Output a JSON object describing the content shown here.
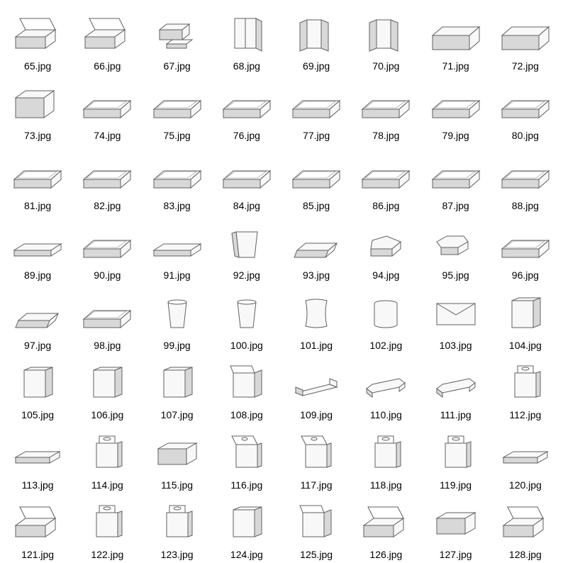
{
  "grid": {
    "columns": 8,
    "rows": 8,
    "background_color": "#ffffff",
    "label_color": "#000000",
    "label_fontsize": 14,
    "stroke_color": "#606060",
    "stroke_light": "#b0b0b0",
    "fill_light": "#f8f8f8",
    "fill_shadow": "#d8d8d8"
  },
  "items": [
    {
      "label": "65.jpg",
      "shape": "box_open_lid"
    },
    {
      "label": "66.jpg",
      "shape": "box_open_lid"
    },
    {
      "label": "67.jpg",
      "shape": "box_with_tray"
    },
    {
      "label": "68.jpg",
      "shape": "tall_folder"
    },
    {
      "label": "69.jpg",
      "shape": "tall_folder_open"
    },
    {
      "label": "70.jpg",
      "shape": "tall_folder_open"
    },
    {
      "label": "71.jpg",
      "shape": "tray_deep"
    },
    {
      "label": "72.jpg",
      "shape": "tray_deep"
    },
    {
      "label": "73.jpg",
      "shape": "box_half"
    },
    {
      "label": "74.jpg",
      "shape": "tray"
    },
    {
      "label": "75.jpg",
      "shape": "tray"
    },
    {
      "label": "76.jpg",
      "shape": "tray"
    },
    {
      "label": "77.jpg",
      "shape": "tray"
    },
    {
      "label": "78.jpg",
      "shape": "tray"
    },
    {
      "label": "79.jpg",
      "shape": "tray"
    },
    {
      "label": "80.jpg",
      "shape": "tray"
    },
    {
      "label": "81.jpg",
      "shape": "tray"
    },
    {
      "label": "82.jpg",
      "shape": "tray"
    },
    {
      "label": "83.jpg",
      "shape": "tray"
    },
    {
      "label": "84.jpg",
      "shape": "tray"
    },
    {
      "label": "85.jpg",
      "shape": "tray"
    },
    {
      "label": "86.jpg",
      "shape": "tray"
    },
    {
      "label": "87.jpg",
      "shape": "tray"
    },
    {
      "label": "88.jpg",
      "shape": "tray"
    },
    {
      "label": "89.jpg",
      "shape": "tray_shallow"
    },
    {
      "label": "90.jpg",
      "shape": "tray"
    },
    {
      "label": "91.jpg",
      "shape": "tray_shallow"
    },
    {
      "label": "92.jpg",
      "shape": "bag"
    },
    {
      "label": "93.jpg",
      "shape": "tray_angled"
    },
    {
      "label": "94.jpg",
      "shape": "pentagon_tray"
    },
    {
      "label": "95.jpg",
      "shape": "hex_tray"
    },
    {
      "label": "96.jpg",
      "shape": "tray"
    },
    {
      "label": "97.jpg",
      "shape": "tray_angled"
    },
    {
      "label": "98.jpg",
      "shape": "tray"
    },
    {
      "label": "99.jpg",
      "shape": "cup"
    },
    {
      "label": "100.jpg",
      "shape": "cup"
    },
    {
      "label": "101.jpg",
      "shape": "pillow"
    },
    {
      "label": "102.jpg",
      "shape": "cylinder"
    },
    {
      "label": "103.jpg",
      "shape": "envelope"
    },
    {
      "label": "104.jpg",
      "shape": "tall_box"
    },
    {
      "label": "105.jpg",
      "shape": "tall_box"
    },
    {
      "label": "106.jpg",
      "shape": "tall_box"
    },
    {
      "label": "107.jpg",
      "shape": "tall_box"
    },
    {
      "label": "108.jpg",
      "shape": "tall_box_open"
    },
    {
      "label": "109.jpg",
      "shape": "prism"
    },
    {
      "label": "110.jpg",
      "shape": "hex_prism"
    },
    {
      "label": "111.jpg",
      "shape": "hex_prism"
    },
    {
      "label": "112.jpg",
      "shape": "hang_box"
    },
    {
      "label": "113.jpg",
      "shape": "flat_box"
    },
    {
      "label": "114.jpg",
      "shape": "hang_box"
    },
    {
      "label": "115.jpg",
      "shape": "box_closed"
    },
    {
      "label": "116.jpg",
      "shape": "hang_box_open"
    },
    {
      "label": "117.jpg",
      "shape": "hang_box_open"
    },
    {
      "label": "118.jpg",
      "shape": "hang_box"
    },
    {
      "label": "119.jpg",
      "shape": "hang_box"
    },
    {
      "label": "120.jpg",
      "shape": "flat_box"
    },
    {
      "label": "121.jpg",
      "shape": "box_open_lid"
    },
    {
      "label": "122.jpg",
      "shape": "hang_box"
    },
    {
      "label": "123.jpg",
      "shape": "hang_box"
    },
    {
      "label": "124.jpg",
      "shape": "tall_box"
    },
    {
      "label": "125.jpg",
      "shape": "tall_box_open"
    },
    {
      "label": "126.jpg",
      "shape": "box_open_lid"
    },
    {
      "label": "127.jpg",
      "shape": "box_closed"
    },
    {
      "label": "128.jpg",
      "shape": "box_open_lid"
    }
  ]
}
